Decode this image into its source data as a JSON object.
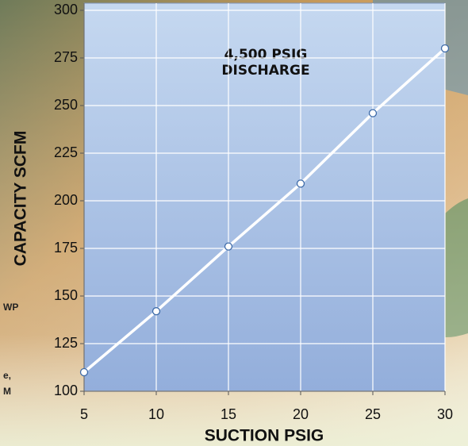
{
  "chart_data": {
    "type": "line",
    "x_label": "SUCTION PSIG",
    "y_label": "CAPACITY SCFM",
    "annotation": [
      "4,500 PSIG",
      "DISCHARGE"
    ],
    "x": [
      5,
      10,
      15,
      20,
      25,
      30
    ],
    "series": [
      {
        "color": "#ffffff",
        "values": [
          110,
          142,
          176,
          209,
          246,
          280
        ]
      }
    ],
    "xlim": [
      5,
      30
    ],
    "xticks": [
      5,
      10,
      15,
      20,
      25,
      30
    ],
    "ylim": [
      100,
      300
    ],
    "yticks": [
      100,
      125,
      150,
      175,
      200,
      225,
      250,
      275,
      300
    ],
    "grid": true
  },
  "background_text": [
    "WP",
    "e,",
    "M"
  ]
}
